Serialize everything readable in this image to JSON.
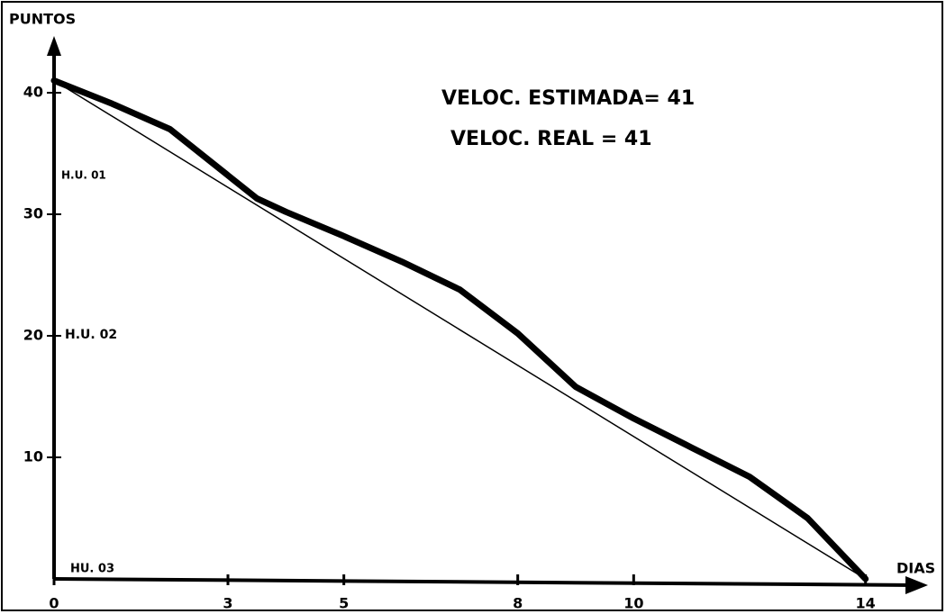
{
  "chart_data": {
    "type": "line",
    "x_label": "DIAS",
    "y_label": "PUNTOS",
    "annotations": [
      "VELOC. ESTIMADA= 41",
      "VELOC. REAL = 41",
      "H.U. 01",
      "H.U. 02",
      "HU. 03"
    ],
    "series": [
      {
        "color": "#000000",
        "x": [
          0,
          14
        ],
        "values": [
          41,
          0
        ]
      },
      {
        "color": "#000000",
        "x": [
          0,
          1,
          2,
          3,
          3.5,
          4,
          5,
          6,
          7,
          8,
          9,
          10,
          11,
          12,
          13,
          14
        ],
        "values": [
          41,
          39.1,
          37,
          33.2,
          31.3,
          30.2,
          28.2,
          26.1,
          23.8,
          20.2,
          15.8,
          13.2,
          10.8,
          8.4,
          5,
          0
        ]
      }
    ],
    "xlim": [
      0,
      15
    ],
    "ylim": [
      0,
      44
    ],
    "xticks": [
      0,
      3,
      5,
      8,
      10,
      14
    ],
    "yticks": [
      10,
      20,
      30,
      40
    ]
  }
}
